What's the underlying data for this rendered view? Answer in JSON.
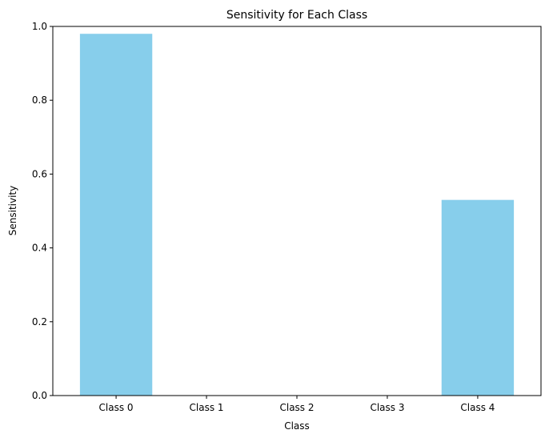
{
  "chart_data": {
    "type": "bar",
    "title": "Sensitivity for Each Class",
    "xlabel": "Class",
    "ylabel": "Sensitivity",
    "categories": [
      "Class 0",
      "Class 1",
      "Class 2",
      "Class 3",
      "Class 4"
    ],
    "values": [
      0.98,
      0.0,
      0.0,
      0.0,
      0.53
    ],
    "ylim": [
      0,
      1.0
    ],
    "yticks": [
      "0.0",
      "0.2",
      "0.4",
      "0.6",
      "0.8",
      "1.0"
    ],
    "grid": false,
    "bar_color": "#87CEEB"
  }
}
